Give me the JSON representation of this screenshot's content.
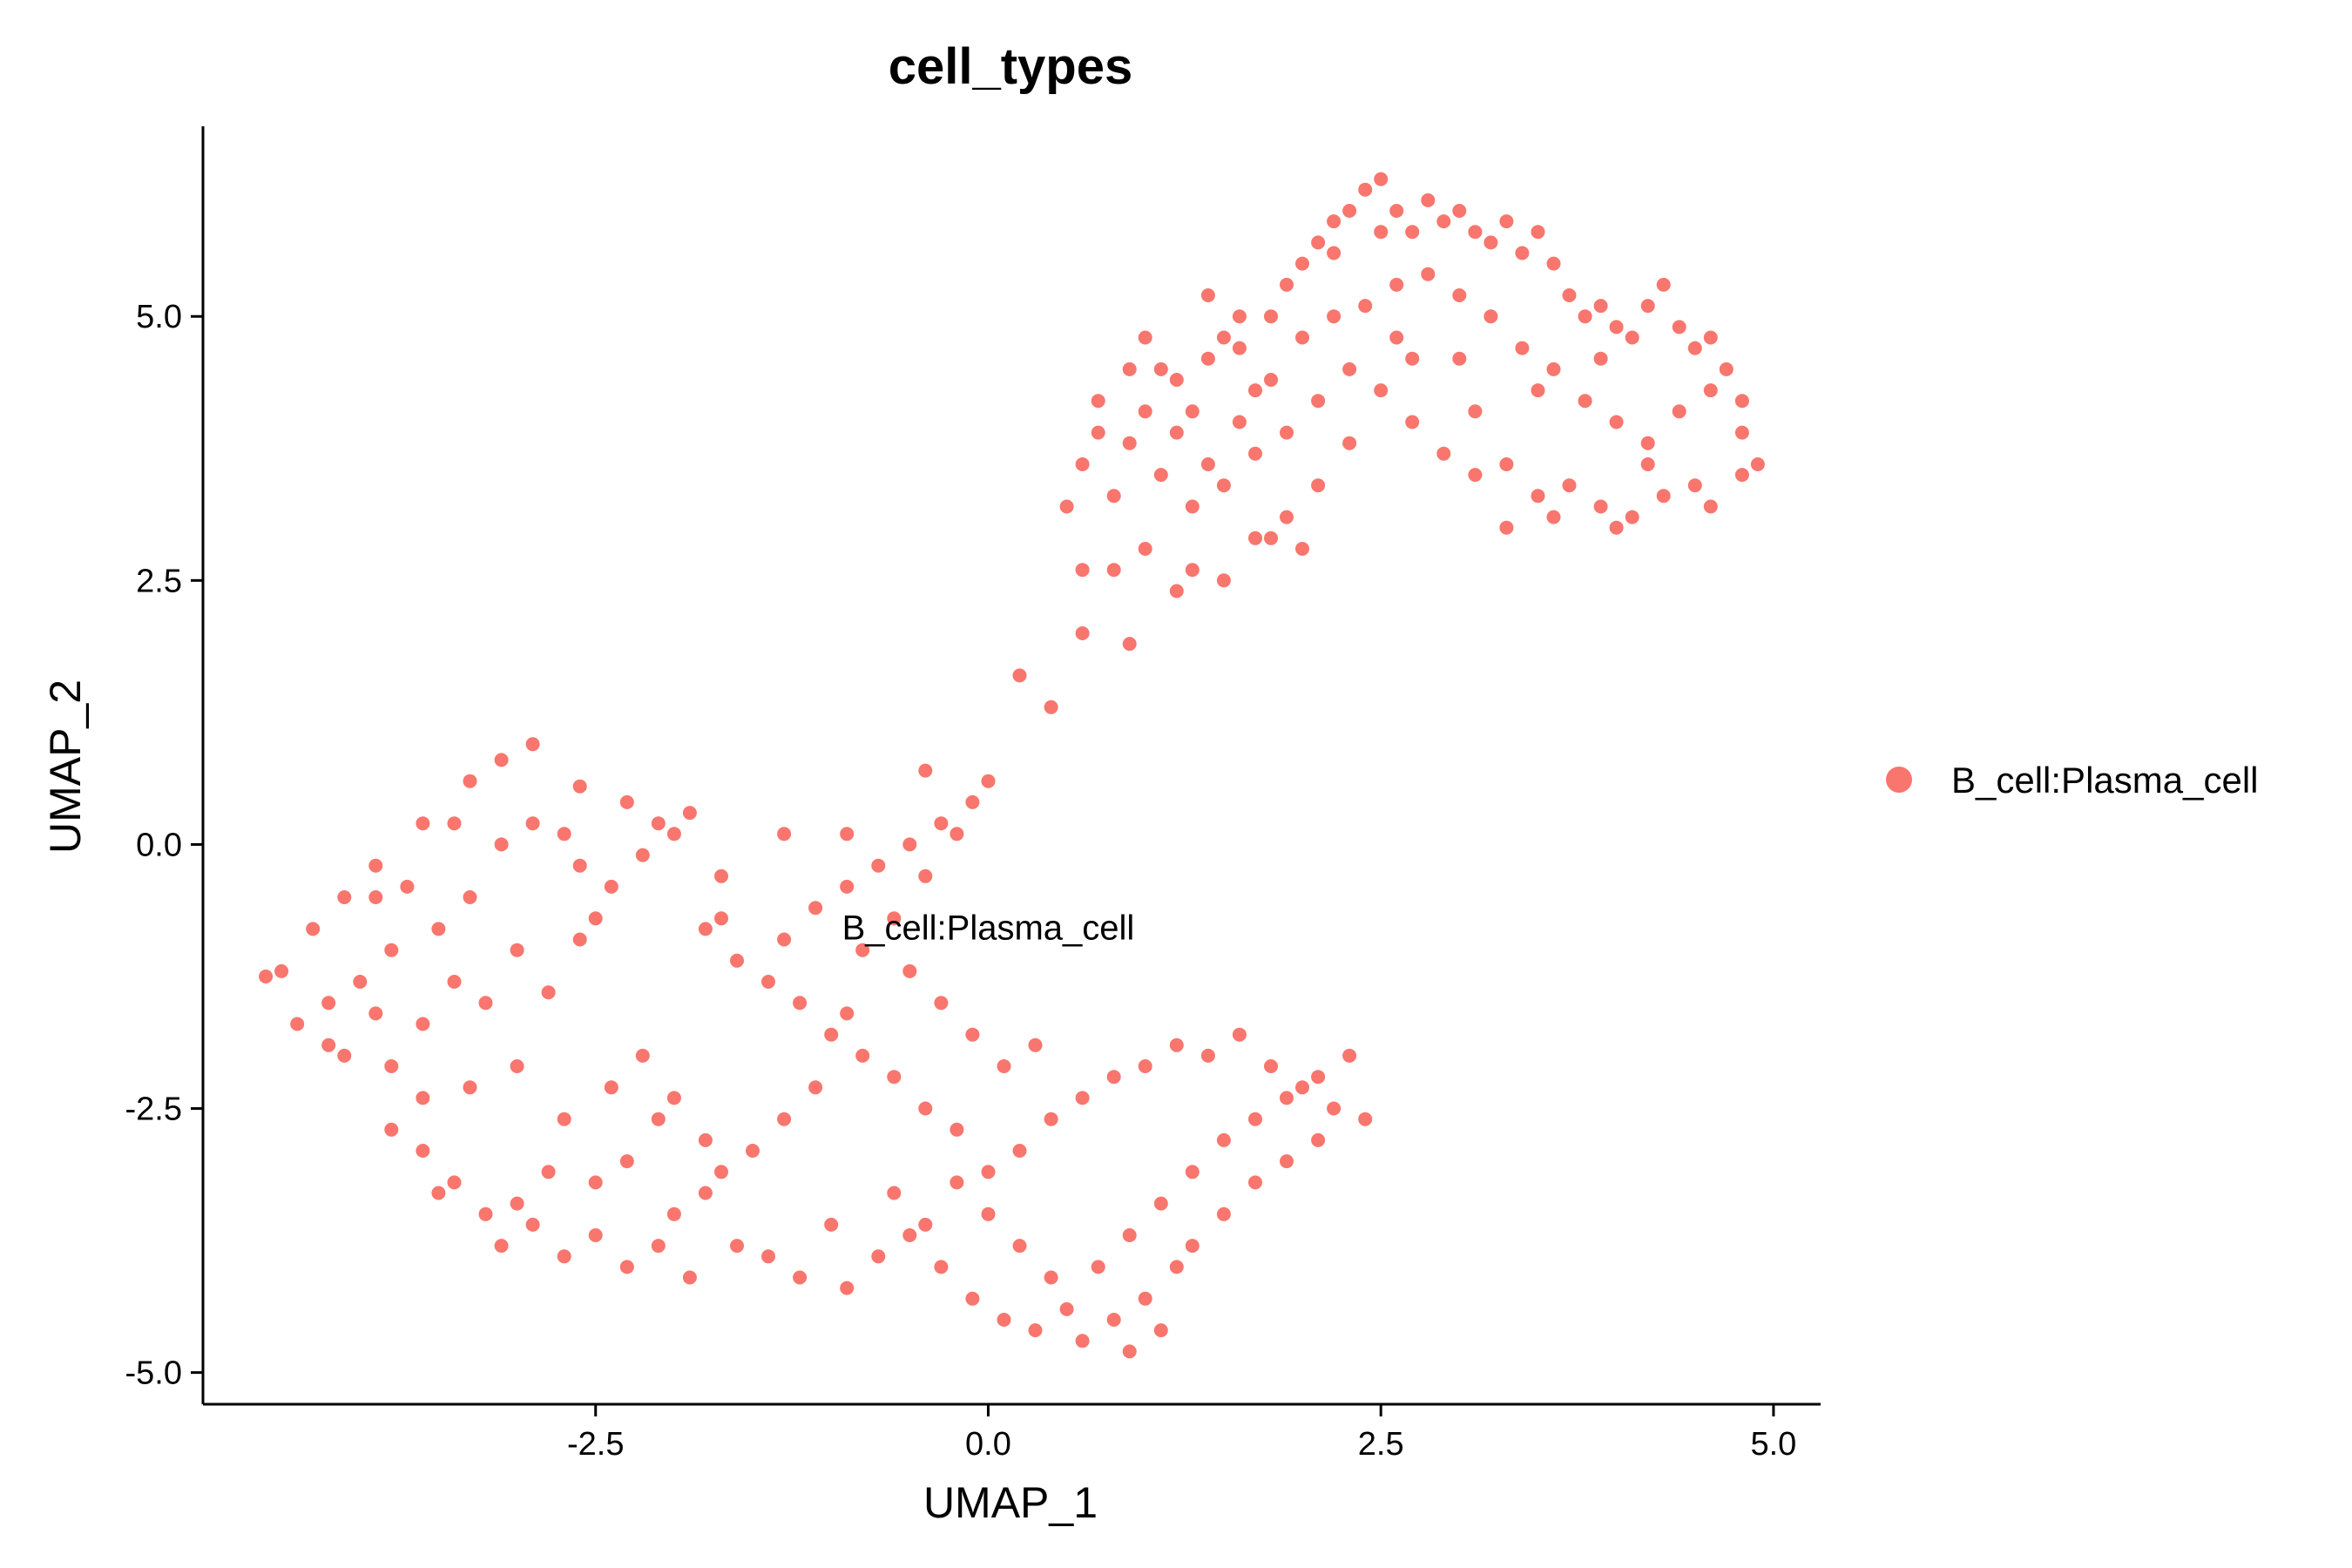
{
  "chart_data": {
    "type": "scatter",
    "title": "cell_types",
    "xlabel": "UMAP_1",
    "ylabel": "UMAP_2",
    "xlim": [
      -5.0,
      5.3
    ],
    "ylim": [
      -5.3,
      6.8
    ],
    "x_ticks": [
      -2.5,
      0.0,
      2.5,
      5.0
    ],
    "x_tick_labels": [
      "-2.5",
      "0.0",
      "2.5",
      "5.0"
    ],
    "y_ticks": [
      -5.0,
      -2.5,
      0.0,
      2.5,
      5.0
    ],
    "y_tick_labels": [
      "-5.0",
      "-2.5",
      "0.0",
      "2.5",
      "5.0"
    ],
    "grid": false,
    "legend_position": "right",
    "cluster_label": {
      "text": "B_cell:Plasma_cell",
      "x": 0.0,
      "y": -0.9
    },
    "series": [
      {
        "name": "B_cell:Plasma_cell",
        "color": "#F8766D",
        "points": [
          [
            -3.1,
            0.8
          ],
          [
            -2.9,
            0.95
          ],
          [
            -3.3,
            0.6
          ],
          [
            -2.6,
            0.55
          ],
          [
            -2.3,
            0.4
          ],
          [
            -2.1,
            0.2
          ],
          [
            -2.0,
            0.1
          ],
          [
            -1.9,
            0.3
          ],
          [
            -1.7,
            -0.3
          ],
          [
            -3.6,
            0.2
          ],
          [
            -3.9,
            -0.2
          ],
          [
            -4.1,
            -0.5
          ],
          [
            -4.3,
            -0.8
          ],
          [
            -4.5,
            -1.2
          ],
          [
            -4.6,
            -1.25
          ],
          [
            -4.4,
            -1.7
          ],
          [
            -4.2,
            -1.9
          ],
          [
            -3.9,
            -1.6
          ],
          [
            -3.8,
            -2.1
          ],
          [
            -3.6,
            -1.7
          ],
          [
            -3.4,
            -1.3
          ],
          [
            -3.2,
            -1.5
          ],
          [
            -3.0,
            -1.0
          ],
          [
            -2.8,
            -1.4
          ],
          [
            -2.6,
            -0.9
          ],
          [
            -2.5,
            -0.7
          ],
          [
            -2.4,
            -0.4
          ],
          [
            -2.7,
            0.1
          ],
          [
            -2.9,
            0.2
          ],
          [
            -3.1,
            0.0
          ],
          [
            -3.3,
            -0.5
          ],
          [
            -3.5,
            -0.8
          ],
          [
            -3.7,
            -0.4
          ],
          [
            -3.8,
            -1.0
          ],
          [
            -4.0,
            -1.3
          ],
          [
            -3.6,
            -2.4
          ],
          [
            -3.3,
            -2.3
          ],
          [
            -3.0,
            -2.1
          ],
          [
            -2.7,
            -2.6
          ],
          [
            -2.4,
            -2.3
          ],
          [
            -2.2,
            -2.0
          ],
          [
            -2.0,
            -2.4
          ],
          [
            -1.8,
            -2.8
          ],
          [
            -2.1,
            -2.6
          ],
          [
            -2.3,
            -3.0
          ],
          [
            -2.5,
            -3.2
          ],
          [
            -2.8,
            -3.1
          ],
          [
            -3.0,
            -3.4
          ],
          [
            -3.2,
            -3.5
          ],
          [
            -3.4,
            -3.2
          ],
          [
            -3.6,
            -2.9
          ],
          [
            -3.8,
            -2.7
          ],
          [
            -3.5,
            -3.3
          ],
          [
            -3.1,
            -3.8
          ],
          [
            -2.9,
            -3.6
          ],
          [
            -2.7,
            -3.9
          ],
          [
            -2.5,
            -3.7
          ],
          [
            -2.3,
            -4.0
          ],
          [
            -2.1,
            -3.8
          ],
          [
            -1.9,
            -4.1
          ],
          [
            -2.0,
            -3.5
          ],
          [
            -1.8,
            -3.3
          ],
          [
            -1.6,
            -3.8
          ],
          [
            -1.4,
            -3.9
          ],
          [
            -1.2,
            -4.1
          ],
          [
            -1.0,
            -3.6
          ],
          [
            -0.9,
            -4.2
          ],
          [
            -0.7,
            -3.9
          ],
          [
            -0.5,
            -3.7
          ],
          [
            -0.3,
            -4.0
          ],
          [
            -0.1,
            -4.3
          ],
          [
            0.1,
            -4.5
          ],
          [
            0.3,
            -4.6
          ],
          [
            0.5,
            -4.4
          ],
          [
            0.6,
            -4.7
          ],
          [
            0.8,
            -4.5
          ],
          [
            0.9,
            -4.8
          ],
          [
            1.1,
            -4.6
          ],
          [
            1.0,
            -4.3
          ],
          [
            1.2,
            -4.0
          ],
          [
            1.3,
            -3.8
          ],
          [
            1.5,
            -3.5
          ],
          [
            1.7,
            -3.2
          ],
          [
            1.9,
            -3.0
          ],
          [
            2.1,
            -2.8
          ],
          [
            2.2,
            -2.5
          ],
          [
            2.3,
            -2.0
          ],
          [
            2.0,
            -2.3
          ],
          [
            1.8,
            -2.1
          ],
          [
            1.6,
            -1.8
          ],
          [
            1.4,
            -2.0
          ],
          [
            1.2,
            -1.9
          ],
          [
            1.0,
            -2.1
          ],
          [
            0.8,
            -2.2
          ],
          [
            0.6,
            -2.4
          ],
          [
            0.4,
            -2.6
          ],
          [
            0.2,
            -2.9
          ],
          [
            0.0,
            -3.1
          ],
          [
            -0.2,
            -2.7
          ],
          [
            -0.4,
            -2.5
          ],
          [
            -0.6,
            -2.2
          ],
          [
            -0.8,
            -2.0
          ],
          [
            -1.0,
            -1.8
          ],
          [
            -1.2,
            -1.5
          ],
          [
            -1.4,
            -1.3
          ],
          [
            -1.6,
            -1.1
          ],
          [
            -1.8,
            -0.8
          ],
          [
            -1.3,
            -0.9
          ],
          [
            -1.1,
            -0.6
          ],
          [
            -0.9,
            -0.4
          ],
          [
            -0.7,
            -0.2
          ],
          [
            -0.5,
            0.0
          ],
          [
            -0.3,
            0.2
          ],
          [
            -0.1,
            0.4
          ],
          [
            -0.2,
            0.1
          ],
          [
            -0.4,
            -0.3
          ],
          [
            -0.6,
            -0.7
          ],
          [
            -0.8,
            -1.0
          ],
          [
            -0.5,
            -1.2
          ],
          [
            -0.3,
            -1.5
          ],
          [
            -0.1,
            -1.8
          ],
          [
            0.1,
            -2.1
          ],
          [
            0.3,
            -1.9
          ],
          [
            -0.9,
            -1.6
          ],
          [
            -1.1,
            -2.3
          ],
          [
            -1.3,
            -2.6
          ],
          [
            -1.5,
            -2.9
          ],
          [
            -1.7,
            -3.1
          ],
          [
            -0.6,
            -3.3
          ],
          [
            -0.4,
            -3.6
          ],
          [
            -0.2,
            -3.2
          ],
          [
            0.0,
            -3.5
          ],
          [
            0.2,
            -3.8
          ],
          [
            0.4,
            -4.1
          ],
          [
            0.7,
            -4.0
          ],
          [
            0.9,
            -3.7
          ],
          [
            1.1,
            -3.4
          ],
          [
            1.3,
            -3.1
          ],
          [
            1.5,
            -2.8
          ],
          [
            1.7,
            -2.6
          ],
          [
            1.9,
            -2.4
          ],
          [
            2.1,
            -2.2
          ],
          [
            2.4,
            -2.6
          ],
          [
            0.0,
            0.6
          ],
          [
            -0.4,
            0.7
          ],
          [
            -0.9,
            0.1
          ],
          [
            -1.3,
            0.1
          ],
          [
            -1.7,
            -0.7
          ],
          [
            -2.2,
            -0.1
          ],
          [
            -2.6,
            -0.2
          ],
          [
            -3.4,
            0.2
          ],
          [
            -3.9,
            -0.5
          ],
          [
            -4.2,
            -1.5
          ],
          [
            -4.1,
            -2.0
          ],
          [
            0.2,
            1.6
          ],
          [
            0.4,
            1.3
          ],
          [
            0.5,
            3.2
          ],
          [
            0.6,
            2.6
          ],
          [
            0.6,
            2.0
          ],
          [
            0.8,
            2.6
          ],
          [
            0.9,
            1.9
          ],
          [
            0.6,
            3.6
          ],
          [
            0.7,
            3.9
          ],
          [
            0.7,
            4.2
          ],
          [
            0.9,
            4.5
          ],
          [
            1.0,
            4.8
          ],
          [
            1.1,
            4.5
          ],
          [
            1.2,
            4.4
          ],
          [
            1.3,
            4.1
          ],
          [
            1.4,
            4.6
          ],
          [
            1.5,
            4.8
          ],
          [
            1.6,
            4.7
          ],
          [
            1.7,
            4.3
          ],
          [
            1.8,
            5.0
          ],
          [
            1.9,
            5.3
          ],
          [
            2.0,
            5.5
          ],
          [
            2.1,
            5.7
          ],
          [
            2.2,
            5.9
          ],
          [
            2.3,
            6.0
          ],
          [
            2.4,
            6.2
          ],
          [
            2.5,
            5.8
          ],
          [
            2.6,
            6.0
          ],
          [
            2.7,
            5.8
          ],
          [
            2.8,
            6.1
          ],
          [
            2.9,
            5.9
          ],
          [
            3.0,
            6.0
          ],
          [
            3.1,
            5.8
          ],
          [
            3.2,
            5.7
          ],
          [
            3.3,
            5.9
          ],
          [
            3.4,
            5.6
          ],
          [
            3.5,
            5.8
          ],
          [
            3.6,
            5.5
          ],
          [
            3.7,
            5.2
          ],
          [
            3.8,
            5.0
          ],
          [
            3.9,
            5.1
          ],
          [
            4.0,
            4.9
          ],
          [
            4.1,
            4.8
          ],
          [
            4.2,
            5.1
          ],
          [
            4.3,
            5.3
          ],
          [
            4.4,
            4.9
          ],
          [
            4.5,
            4.7
          ],
          [
            4.6,
            4.8
          ],
          [
            4.7,
            4.5
          ],
          [
            4.8,
            4.2
          ],
          [
            4.8,
            3.9
          ],
          [
            4.9,
            3.6
          ],
          [
            4.8,
            3.5
          ],
          [
            4.6,
            3.2
          ],
          [
            4.5,
            3.4
          ],
          [
            4.3,
            3.3
          ],
          [
            4.1,
            3.1
          ],
          [
            4.0,
            3.0
          ],
          [
            3.9,
            3.2
          ],
          [
            3.7,
            3.4
          ],
          [
            3.6,
            3.1
          ],
          [
            3.5,
            3.3
          ],
          [
            3.3,
            3.6
          ],
          [
            3.1,
            3.5
          ],
          [
            2.9,
            3.7
          ],
          [
            2.7,
            4.0
          ],
          [
            2.5,
            4.3
          ],
          [
            2.3,
            4.5
          ],
          [
            2.1,
            4.2
          ],
          [
            1.9,
            3.9
          ],
          [
            1.7,
            3.7
          ],
          [
            1.5,
            3.4
          ],
          [
            1.3,
            3.2
          ],
          [
            1.1,
            3.5
          ],
          [
            0.9,
            3.8
          ],
          [
            1.0,
            4.1
          ],
          [
            1.2,
            3.9
          ],
          [
            1.4,
            3.6
          ],
          [
            1.6,
            4.0
          ],
          [
            1.8,
            4.4
          ],
          [
            2.0,
            4.8
          ],
          [
            2.2,
            5.0
          ],
          [
            2.4,
            5.1
          ],
          [
            2.6,
            5.3
          ],
          [
            2.8,
            5.4
          ],
          [
            3.0,
            5.2
          ],
          [
            3.2,
            5.0
          ],
          [
            3.4,
            4.7
          ],
          [
            3.6,
            4.5
          ],
          [
            3.8,
            4.2
          ],
          [
            4.0,
            4.0
          ],
          [
            4.2,
            3.8
          ],
          [
            4.4,
            4.1
          ],
          [
            4.6,
            4.3
          ],
          [
            3.9,
            4.6
          ],
          [
            3.5,
            4.3
          ],
          [
            3.1,
            4.1
          ],
          [
            2.7,
            4.6
          ],
          [
            2.3,
            3.8
          ],
          [
            2.1,
            3.4
          ],
          [
            1.9,
            3.1
          ],
          [
            1.7,
            2.9
          ],
          [
            1.5,
            2.5
          ],
          [
            1.3,
            2.6
          ],
          [
            1.2,
            2.4
          ],
          [
            1.0,
            2.8
          ],
          [
            0.8,
            3.3
          ],
          [
            1.4,
            5.2
          ],
          [
            1.6,
            5.0
          ],
          [
            2.2,
            5.6
          ],
          [
            2.5,
            6.3
          ],
          [
            1.8,
            2.9
          ],
          [
            2.0,
            2.8
          ],
          [
            3.3,
            3.0
          ],
          [
            4.2,
            3.6
          ],
          [
            2.6,
            4.8
          ],
          [
            3.0,
            4.6
          ]
        ]
      }
    ]
  }
}
